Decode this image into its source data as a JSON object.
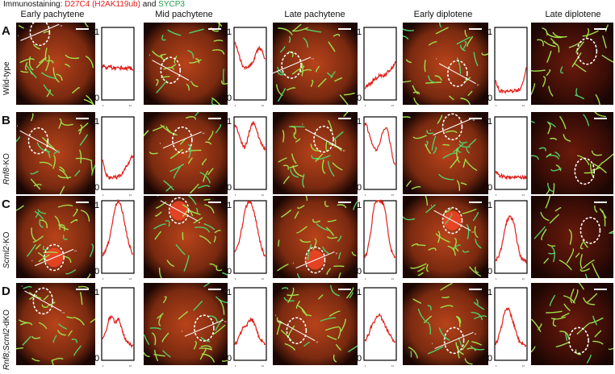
{
  "legend": {
    "prefix": "Immunostaining: ",
    "red": "D27C4 (H2AK119ub)",
    "and": " and ",
    "green": "SYCP3"
  },
  "columns": [
    "Early pachytene",
    "Mid pachytene",
    "Late pachytene",
    "Early diplotene",
    "Late diplotene"
  ],
  "rows": [
    {
      "letter": "A",
      "label_plain": "Wild-type",
      "label_italic": "",
      "label_suffix": ""
    },
    {
      "letter": "B",
      "label_plain": "",
      "label_italic": "Rnf8",
      "label_suffix": "-KO"
    },
    {
      "letter": "C",
      "label_plain": "",
      "label_italic": "Scml2",
      "label_suffix": "-KO"
    },
    {
      "letter": "D",
      "label_plain": "",
      "label_italic": "Rnf8;Scml2",
      "label_suffix": "-dKO"
    }
  ],
  "axis": {
    "y_top": "1",
    "y_bottom": "0",
    "mark_start": "‘",
    "mark_end": "‘‘"
  },
  "chart_data": {
    "type": "line",
    "description_axes": {
      "ylim": [
        0,
        1
      ]
    },
    "profiles": [
      {
        "row": "A",
        "column": "Early pachytene",
        "y": [
          0.45,
          0.46,
          0.44,
          0.45,
          0.47,
          0.46,
          0.44,
          0.45,
          0.43,
          0.45,
          0.46,
          0.44,
          0.45,
          0.43,
          0.44,
          0.43,
          0.45,
          0.44,
          0.43,
          0.42
        ]
      },
      {
        "row": "A",
        "column": "Mid pachytene",
        "y": [
          0.78,
          0.74,
          0.68,
          0.58,
          0.52,
          0.47,
          0.45,
          0.44,
          0.44,
          0.46,
          0.48,
          0.52,
          0.57,
          0.63,
          0.68,
          0.72,
          0.7,
          0.66,
          0.6,
          0.55
        ]
      },
      {
        "row": "A",
        "column": "Late pachytene",
        "y": [
          0.16,
          0.18,
          0.2,
          0.22,
          0.24,
          0.26,
          0.28,
          0.3,
          0.32,
          0.33,
          0.33,
          0.34,
          0.34,
          0.36,
          0.38,
          0.4,
          0.42,
          0.44,
          0.48,
          0.52
        ]
      },
      {
        "row": "A",
        "column": "Early diplotene",
        "y": [
          0.28,
          0.2,
          0.14,
          0.12,
          0.12,
          0.11,
          0.12,
          0.12,
          0.11,
          0.12,
          0.12,
          0.12,
          0.13,
          0.13,
          0.14,
          0.15,
          0.18,
          0.25,
          0.35,
          0.45
        ]
      },
      {
        "row": "B",
        "column": "Early pachytene",
        "y": [
          0.42,
          0.3,
          0.22,
          0.18,
          0.16,
          0.15,
          0.16,
          0.17,
          0.16,
          0.17,
          0.18,
          0.19,
          0.21,
          0.24,
          0.28,
          0.32,
          0.36,
          0.4,
          0.44,
          0.46
        ]
      },
      {
        "row": "B",
        "column": "Mid pachytene",
        "y": [
          0.9,
          0.86,
          0.8,
          0.72,
          0.66,
          0.6,
          0.58,
          0.62,
          0.7,
          0.8,
          0.88,
          0.92,
          0.9,
          0.85,
          0.78,
          0.72,
          0.66,
          0.62,
          0.58,
          0.55
        ]
      },
      {
        "row": "B",
        "column": "Late pachytene",
        "y": [
          0.92,
          0.88,
          0.82,
          0.74,
          0.66,
          0.6,
          0.56,
          0.54,
          0.56,
          0.62,
          0.7,
          0.78,
          0.84,
          0.86,
          0.82,
          0.72,
          0.6,
          0.48,
          0.38,
          0.32
        ]
      },
      {
        "row": "B",
        "column": "Early diplotene",
        "y": [
          0.26,
          0.22,
          0.2,
          0.19,
          0.18,
          0.18,
          0.17,
          0.17,
          0.17,
          0.16,
          0.16,
          0.16,
          0.17,
          0.16,
          0.16,
          0.16,
          0.17,
          0.16,
          0.16,
          0.16
        ]
      },
      {
        "row": "C",
        "column": "Early pachytene",
        "y": [
          0.25,
          0.28,
          0.32,
          0.38,
          0.46,
          0.56,
          0.68,
          0.8,
          0.92,
          0.98,
          1.0,
          0.96,
          0.88,
          0.78,
          0.66,
          0.54,
          0.44,
          0.36,
          0.3,
          0.26
        ]
      },
      {
        "row": "C",
        "column": "Mid pachytene",
        "y": [
          0.3,
          0.34,
          0.4,
          0.48,
          0.58,
          0.7,
          0.82,
          0.92,
          0.98,
          1.0,
          0.98,
          0.92,
          0.84,
          0.74,
          0.62,
          0.5,
          0.4,
          0.32,
          0.26,
          0.22
        ]
      },
      {
        "row": "C",
        "column": "Late pachytene",
        "y": [
          0.22,
          0.26,
          0.34,
          0.46,
          0.62,
          0.8,
          0.95,
          1.0,
          1.0,
          1.0,
          1.0,
          0.98,
          0.92,
          0.8,
          0.64,
          0.48,
          0.36,
          0.28,
          0.24,
          0.22
        ]
      },
      {
        "row": "C",
        "column": "Early diplotene",
        "y": [
          0.18,
          0.2,
          0.24,
          0.3,
          0.4,
          0.52,
          0.64,
          0.72,
          0.76,
          0.78,
          0.76,
          0.72,
          0.62,
          0.48,
          0.36,
          0.26,
          0.2,
          0.18,
          0.17,
          0.16
        ]
      },
      {
        "row": "D",
        "column": "Early pachytene",
        "y": [
          0.3,
          0.34,
          0.4,
          0.48,
          0.56,
          0.6,
          0.58,
          0.56,
          0.52,
          0.56,
          0.58,
          0.52,
          0.44,
          0.36,
          0.3,
          0.26,
          0.24,
          0.22,
          0.2,
          0.2
        ]
      },
      {
        "row": "D",
        "column": "Mid pachytene",
        "y": [
          0.22,
          0.24,
          0.28,
          0.34,
          0.4,
          0.44,
          0.46,
          0.48,
          0.5,
          0.54,
          0.58,
          0.56,
          0.5,
          0.44,
          0.38,
          0.32,
          0.28,
          0.26,
          0.24,
          0.22
        ]
      },
      {
        "row": "D",
        "column": "Late pachytene",
        "y": [
          0.28,
          0.3,
          0.34,
          0.4,
          0.46,
          0.5,
          0.54,
          0.58,
          0.6,
          0.62,
          0.6,
          0.56,
          0.5,
          0.46,
          0.42,
          0.38,
          0.34,
          0.3,
          0.28,
          0.26
        ]
      },
      {
        "row": "D",
        "column": "Early diplotene",
        "y": [
          0.22,
          0.26,
          0.32,
          0.4,
          0.5,
          0.6,
          0.68,
          0.72,
          0.7,
          0.66,
          0.6,
          0.52,
          0.44,
          0.36,
          0.3,
          0.26,
          0.24,
          0.22,
          0.21,
          0.2
        ]
      }
    ]
  }
}
